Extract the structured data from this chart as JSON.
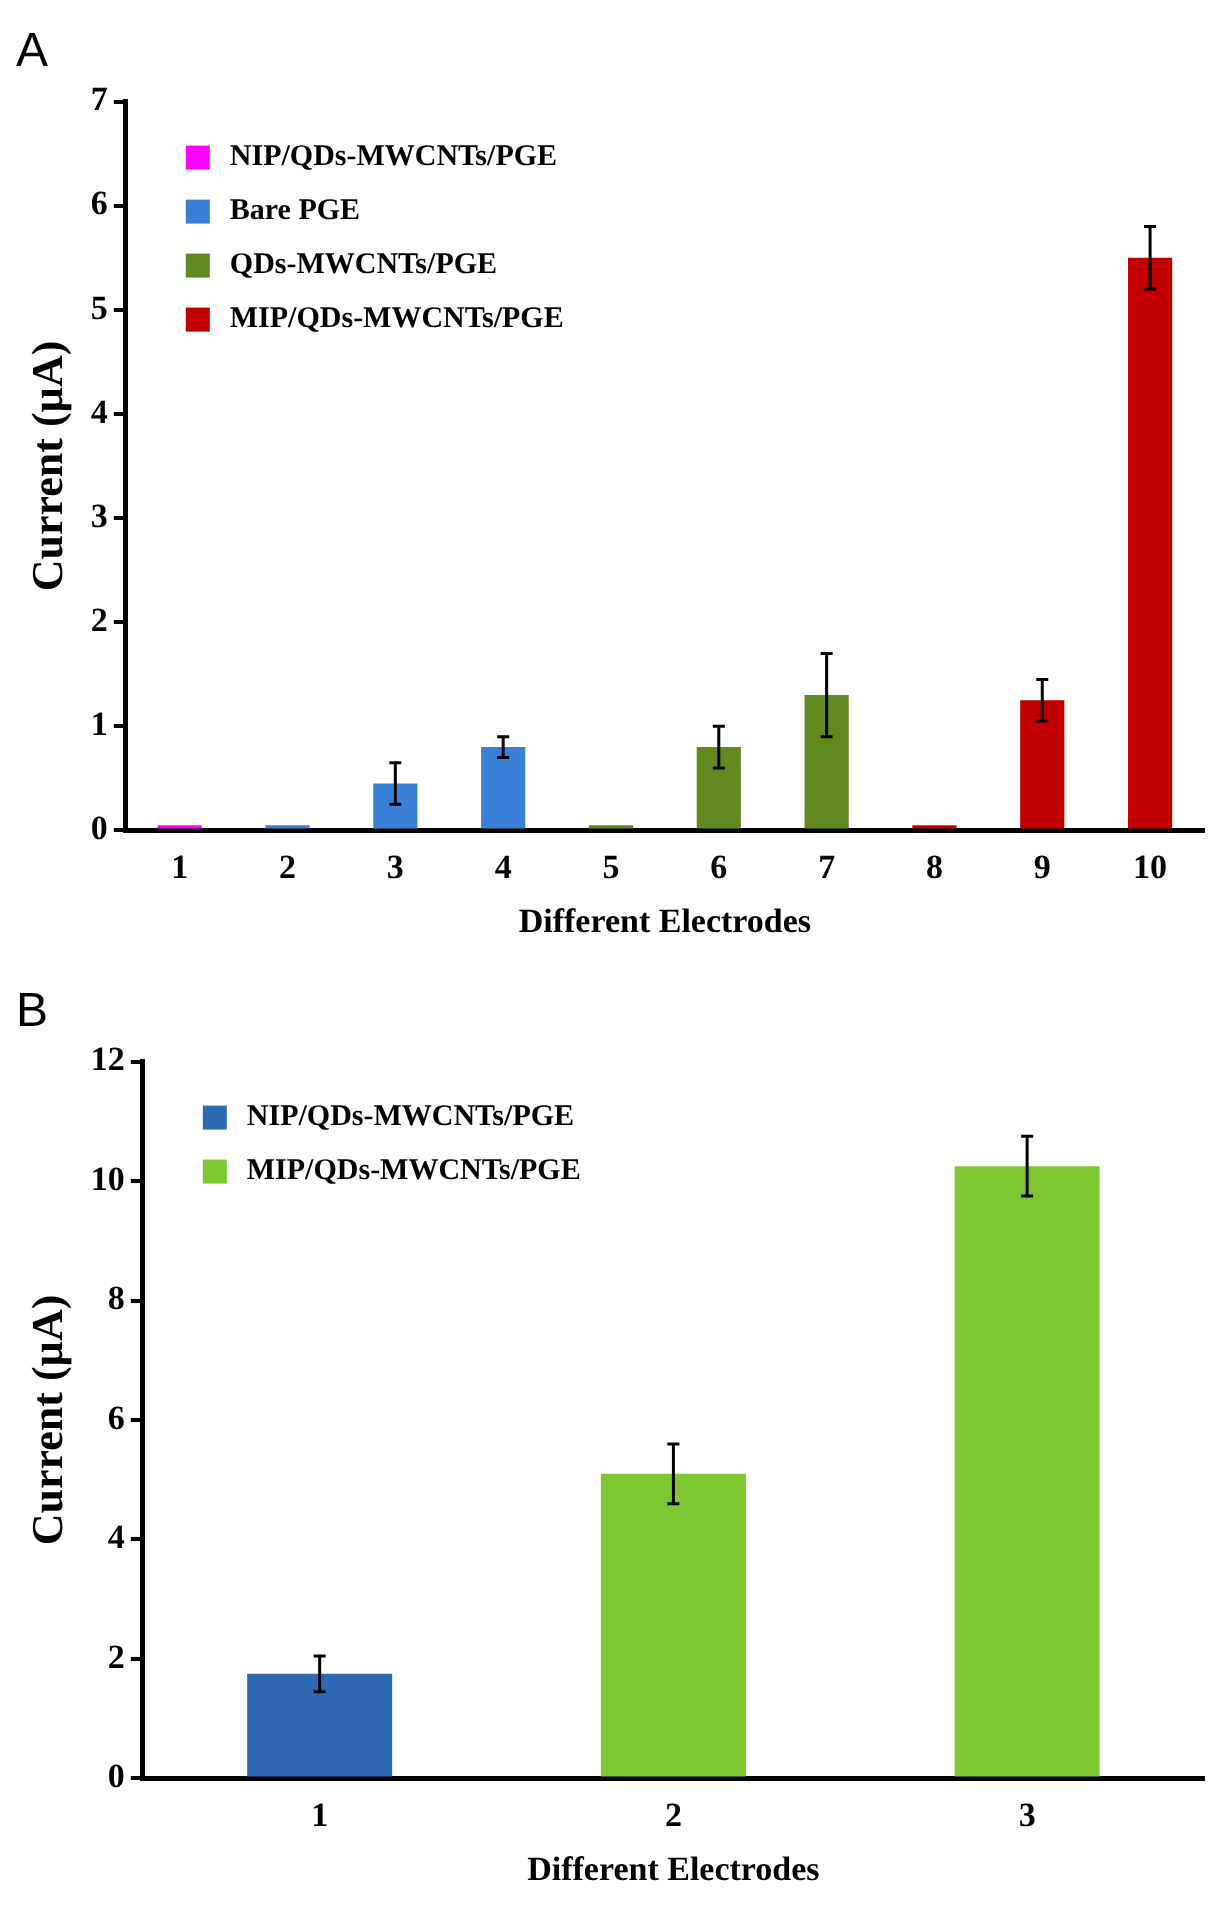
{
  "chart_data": [
    {
      "type": "bar",
      "title": "A",
      "xlabel": "Different Electrodes",
      "ylabel": "Current (µA)",
      "categories": [
        "1",
        "2",
        "3",
        "4",
        "5",
        "6",
        "7",
        "8",
        "9",
        "10"
      ],
      "series": [
        {
          "name": "NIP/QDs-MWCNTs/PGE",
          "color": "#ff00ff",
          "values": [
            0.05,
            null,
            null,
            null,
            null,
            null,
            null,
            null,
            null,
            null
          ]
        },
        {
          "name": "Bare PGE",
          "color": "#3a80d6",
          "values": [
            null,
            0.05,
            0.45,
            0.8,
            null,
            null,
            null,
            null,
            null,
            null
          ],
          "errors": [
            null,
            null,
            0.2,
            0.1,
            null,
            null,
            null,
            null,
            null,
            null
          ]
        },
        {
          "name": "QDs-MWCNTs/PGE",
          "color": "#62891f",
          "values": [
            null,
            null,
            null,
            null,
            0.05,
            0.8,
            1.3,
            null,
            null,
            null
          ],
          "errors": [
            null,
            null,
            null,
            null,
            null,
            0.2,
            0.4,
            null,
            null,
            null
          ]
        },
        {
          "name": "MIP/QDs-MWCNTs/PGE",
          "color": "#c00000",
          "values": [
            null,
            null,
            null,
            null,
            null,
            null,
            null,
            0.05,
            1.25,
            5.5
          ],
          "errors": [
            null,
            null,
            null,
            null,
            null,
            null,
            null,
            null,
            0.2,
            0.3
          ]
        }
      ],
      "ylim": [
        0,
        7
      ],
      "yticks": [
        0,
        1,
        2,
        3,
        4,
        5,
        6,
        7
      ],
      "legend": "top left"
    },
    {
      "type": "bar",
      "title": "B",
      "xlabel": "Different Electrodes",
      "ylabel": "Current (µA)",
      "categories": [
        "1",
        "2",
        "3"
      ],
      "series": [
        {
          "name": "NIP/QDs-MWCNTs/PGE",
          "color": "#2e6ab4",
          "values": [
            1.75,
            null,
            null
          ],
          "errors": [
            0.3,
            null,
            null
          ]
        },
        {
          "name": "MIP/QDs-MWCNTs/PGE",
          "color": "#7dc832",
          "values": [
            null,
            5.1,
            10.25
          ],
          "errors": [
            null,
            0.5,
            0.5
          ]
        }
      ],
      "ylim": [
        0,
        12
      ],
      "yticks": [
        0,
        2,
        4,
        6,
        8,
        10,
        12
      ],
      "legend": "top left"
    }
  ]
}
